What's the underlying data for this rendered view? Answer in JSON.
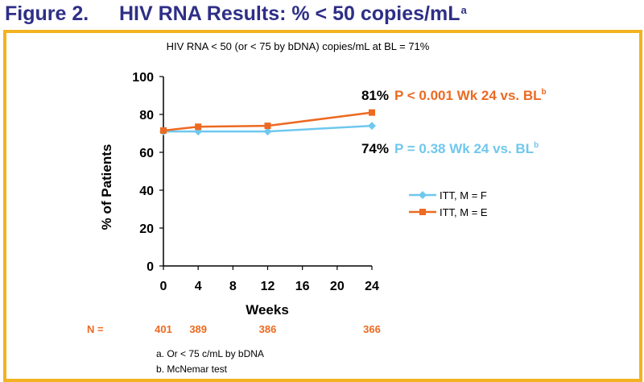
{
  "header": {
    "figure_label": "Figure 2.",
    "title": "HIV RNA Results: % < 50 copies/mL",
    "title_superscript": "a"
  },
  "subtitle": "HIV RNA < 50 (or < 75 by bDNA) copies/mL at BL = 71%",
  "annotations": {
    "upper_value": "81%",
    "upper_text": "P < 0.001 Wk 24 vs. BL",
    "upper_sup": "b",
    "lower_value": "74%",
    "lower_text": "P = 0.38 Wk 24 vs. BL",
    "lower_sup": "b"
  },
  "n_row": {
    "label": "N =",
    "values": [
      "401",
      "389",
      "386",
      "366"
    ],
    "weeks": [
      0,
      4,
      12,
      24
    ]
  },
  "footnotes": [
    "a.  Or < 75 c/mL by bDNA",
    "b.  McNemar test"
  ],
  "colors": {
    "title": "#2e2f86",
    "frame": "#f2b320",
    "itt_f": "#6fc8ee",
    "itt_e": "#ec6a22",
    "n_row": "#ec6a22"
  },
  "chart_data": {
    "type": "line",
    "xlabel": "Weeks",
    "ylabel": "% of Patients",
    "x_ticks": [
      0,
      4,
      8,
      12,
      16,
      20,
      24
    ],
    "y_ticks": [
      0,
      20,
      40,
      60,
      80,
      100
    ],
    "xlim": [
      0,
      24
    ],
    "ylim": [
      0,
      100
    ],
    "grid": false,
    "legend_position": "right",
    "series": [
      {
        "name": "ITT, M = F",
        "marker": "diamond",
        "x": [
          0,
          4,
          12,
          24
        ],
        "values": [
          71,
          71,
          71,
          74
        ]
      },
      {
        "name": "ITT, M = E",
        "marker": "square",
        "x": [
          0,
          4,
          12,
          24
        ],
        "values": [
          71.5,
          73.5,
          74,
          81
        ]
      }
    ]
  }
}
